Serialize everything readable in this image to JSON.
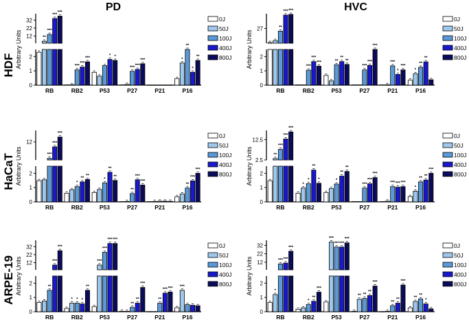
{
  "column_titles": [
    "PD",
    "HVC"
  ],
  "row_labels": [
    "HDF",
    "HaCaT",
    "ARPE-19"
  ],
  "series_colors": {
    "0J": "#ffffff",
    "50J": "#9fc8ec",
    "100J": "#5a9ad8",
    "400J": "#1818cc",
    "800J": "#0b0b5c"
  },
  "chart_data": [
    {
      "type": "bar",
      "row": "HDF",
      "column": "PD",
      "ylabel": "Arbitrary Units",
      "categories": [
        "RB",
        "RB2",
        "P53",
        "P27",
        "P21",
        "P16"
      ],
      "y_axis_break": true,
      "lower_range": [
        0,
        2.5
      ],
      "lower_ticks": [
        0,
        1,
        2
      ],
      "upper_range": [
        3,
        40
      ],
      "upper_ticks": [
        12,
        22,
        32
      ],
      "legend": "right",
      "series": [
        {
          "name": "0J",
          "values": [
            2.3,
            0.02,
            0.9,
            0.02,
            0.01,
            0.45
          ],
          "significance": [
            "",
            "",
            "",
            "",
            "",
            ""
          ]
        },
        {
          "name": "50J",
          "values": [
            5.5,
            0.03,
            0.63,
            0.05,
            0.01,
            1.55
          ],
          "significance": [
            "**",
            "",
            "",
            "",
            "",
            "*"
          ]
        },
        {
          "name": "100J",
          "values": [
            14,
            1.07,
            1.37,
            0.97,
            0.01,
            2.5
          ],
          "significance": [
            "***",
            "***",
            "",
            "***",
            "",
            "**"
          ]
        },
        {
          "name": "400J",
          "values": [
            34,
            1.27,
            1.8,
            1.1,
            0.01,
            0.9
          ],
          "significance": [
            "***",
            "***",
            "*",
            "***",
            "",
            "*"
          ]
        },
        {
          "name": "800J",
          "values": [
            37,
            1.63,
            1.73,
            1.5,
            0.01,
            1.73
          ],
          "significance": [
            "***",
            "***",
            "*",
            "***",
            "",
            "**"
          ]
        }
      ]
    },
    {
      "type": "bar",
      "row": "HDF",
      "column": "HVC",
      "ylabel": "Arbitrary Units",
      "categories": [
        "RB",
        "RB2",
        "P53",
        "P27",
        "P21",
        "P16"
      ],
      "y_axis_break": true,
      "lower_range": [
        0,
        2.5
      ],
      "lower_ticks": [
        0,
        1,
        2
      ],
      "upper_range": [
        16,
        38
      ],
      "upper_ticks": [
        27
      ],
      "legend": "right",
      "series": [
        {
          "name": "0J",
          "values": [
            16.5,
            0.02,
            0.68,
            0.02,
            0.02,
            0.35
          ],
          "significance": [
            "",
            "",
            "",
            "",
            "",
            ""
          ]
        },
        {
          "name": "50J",
          "values": [
            18,
            0.02,
            0.3,
            0.02,
            0.03,
            0.8
          ],
          "significance": [
            "",
            "",
            "",
            "",
            "",
            "*"
          ]
        },
        {
          "name": "100J",
          "values": [
            25,
            1.05,
            1.43,
            1.07,
            1.35,
            1.25
          ],
          "significance": [
            "**",
            "***",
            "**",
            "***",
            "***",
            "**"
          ]
        },
        {
          "name": "400J",
          "values": [
            37,
            1.65,
            1.65,
            1.38,
            0.75,
            1.63
          ],
          "significance": [
            "***",
            "***",
            "**",
            "***",
            "*",
            "**"
          ]
        },
        {
          "name": "800J",
          "values": [
            37.5,
            1.33,
            1.45,
            2.5,
            1.07,
            0.38
          ],
          "significance": [
            "***",
            "***",
            "**",
            "***",
            "***",
            ""
          ]
        }
      ]
    },
    {
      "type": "bar",
      "row": "HaCaT",
      "column": "PD",
      "ylabel": "Arbitrary Units",
      "categories": [
        "RB",
        "RB2",
        "P53",
        "P27",
        "P21",
        "P16"
      ],
      "y_axis_break": true,
      "lower_range": [
        0,
        2.5
      ],
      "lower_ticks": [
        0,
        1,
        2
      ],
      "upper_range": [
        6.5,
        15.5
      ],
      "upper_ticks": [
        12
      ],
      "legend": "right",
      "series": [
        {
          "name": "0J",
          "values": [
            1.48,
            0.6,
            0.65,
            0.02,
            0.02,
            0.35
          ],
          "significance": [
            "",
            "",
            "",
            "",
            "",
            ""
          ]
        },
        {
          "name": "50J",
          "values": [
            1.55,
            0.85,
            0.87,
            0.03,
            0.03,
            0.55
          ],
          "significance": [
            "",
            "",
            "",
            "",
            "",
            ""
          ]
        },
        {
          "name": "100J",
          "values": [
            7,
            1.07,
            1.33,
            0.58,
            0.05,
            0.97
          ],
          "significance": [
            "***",
            "*",
            "*",
            "**",
            "",
            "**"
          ]
        },
        {
          "name": "400J",
          "values": [
            10.5,
            1.4,
            2.07,
            1.55,
            0.05,
            1.47
          ],
          "significance": [
            "***",
            "**",
            "**",
            "***",
            "",
            "***"
          ]
        },
        {
          "name": "800J",
          "values": [
            13.5,
            1.57,
            1.5,
            1.18,
            0.04,
            2.0
          ],
          "significance": [
            "***",
            "**",
            "**",
            "***",
            "",
            "***"
          ]
        }
      ]
    },
    {
      "type": "bar",
      "row": "HaCaT",
      "column": "HVC",
      "ylabel": "Arbitrary Units",
      "categories": [
        "RB",
        "RB2",
        "P53",
        "P27",
        "P21",
        "P16"
      ],
      "y_axis_break": true,
      "lower_range": [
        0,
        2.5
      ],
      "lower_ticks": [
        0,
        1,
        2
      ],
      "upper_range": [
        2.5,
        17
      ],
      "upper_ticks": [
        2.5,
        12.5
      ],
      "legend": "right",
      "series": [
        {
          "name": "0J",
          "values": [
            1.48,
            0.6,
            0.65,
            0.02,
            0.02,
            0.37
          ],
          "significance": [
            "",
            "",
            "",
            "",
            "",
            ""
          ]
        },
        {
          "name": "50J",
          "values": [
            3.2,
            0.97,
            0.93,
            0.02,
            0.05,
            0.75
          ],
          "significance": [
            "**",
            "*",
            "",
            "",
            "",
            "*"
          ]
        },
        {
          "name": "100J",
          "values": [
            7.7,
            1.27,
            1.25,
            0.97,
            1.07,
            1.4
          ],
          "significance": [
            "***",
            "*",
            "*",
            "***",
            "***",
            "**"
          ]
        },
        {
          "name": "400J",
          "values": [
            12.8,
            2.23,
            1.8,
            1.27,
            1.03,
            1.53
          ],
          "significance": [
            "***",
            "**",
            "**",
            "***",
            "***",
            "**"
          ]
        },
        {
          "name": "800J",
          "values": [
            16.3,
            1.3,
            2.13,
            1.7,
            1.07,
            2.0
          ],
          "significance": [
            "***",
            "*",
            "**",
            "***",
            "***",
            "***"
          ]
        }
      ]
    },
    {
      "type": "bar",
      "row": "ARPE-19",
      "column": "PD",
      "ylabel": "Arbitrary Units",
      "categories": [
        "RB",
        "RB2",
        "P53",
        "P27",
        "P21",
        "P16"
      ],
      "y_axis_break": true,
      "lower_range": [
        0,
        2.5
      ],
      "lower_ticks": [
        0,
        1,
        2
      ],
      "upper_range": [
        3,
        40
      ],
      "upper_ticks": [
        12,
        22,
        32
      ],
      "legend": "right",
      "series": [
        {
          "name": "0J",
          "values": [
            0.65,
            0.23,
            0.35,
            0.03,
            0.01,
            0.28
          ],
          "significance": [
            "",
            "",
            "",
            "",
            "",
            ""
          ]
        },
        {
          "name": "50J",
          "values": [
            0.75,
            0.6,
            9,
            0.03,
            0.01,
            1.5
          ],
          "significance": [
            "",
            "*",
            "***",
            "",
            "",
            "***"
          ]
        },
        {
          "name": "100J",
          "values": [
            1.5,
            0.6,
            25,
            0.3,
            0.6,
            0.5
          ],
          "significance": [
            "**",
            "*",
            "***",
            "**",
            "**",
            ""
          ]
        },
        {
          "name": "400J",
          "values": [
            9,
            0.55,
            36,
            0.6,
            1.3,
            0.45
          ],
          "significance": [
            "***",
            "*",
            "***",
            "**",
            "***",
            ""
          ]
        },
        {
          "name": "800J",
          "values": [
            27,
            1.5,
            36,
            1.7,
            1.38,
            0.42
          ],
          "significance": [
            "***",
            "**",
            "***",
            "***",
            "***",
            ""
          ]
        }
      ]
    },
    {
      "type": "bar",
      "row": "ARPE-19",
      "column": "HVC",
      "ylabel": "Arbitrary Units",
      "categories": [
        "RB",
        "RB2",
        "P53",
        "P27",
        "P21",
        "P16"
      ],
      "y_axis_break": true,
      "lower_range": [
        0,
        2.5
      ],
      "lower_ticks": [
        0,
        1,
        2
      ],
      "upper_range": [
        3,
        38
      ],
      "upper_ticks": [
        12,
        22,
        32
      ],
      "legend": "right",
      "series": [
        {
          "name": "0J",
          "values": [
            0.65,
            0.17,
            0.68,
            0.03,
            0.01,
            0.27
          ],
          "significance": [
            "",
            "",
            "",
            "",
            "",
            ""
          ]
        },
        {
          "name": "50J",
          "values": [
            1.2,
            0.27,
            36,
            0.87,
            0.03,
            0.72
          ],
          "significance": [
            "*",
            "",
            "***",
            "**",
            "",
            "**"
          ]
        },
        {
          "name": "100J",
          "values": [
            10,
            0.5,
            30,
            0.93,
            0.42,
            0.9
          ],
          "significance": [
            "***",
            "*",
            "***",
            "**",
            "**",
            "**"
          ]
        },
        {
          "name": "400J",
          "values": [
            11,
            0.73,
            30,
            1.13,
            0.6,
            0.55
          ],
          "significance": [
            "***",
            "**",
            "***",
            "**",
            "**",
            "*"
          ]
        },
        {
          "name": "800J",
          "values": [
            25,
            1.37,
            35,
            1.8,
            1.87,
            0.2
          ],
          "significance": [
            "***",
            "***",
            "***",
            "***",
            "***",
            ""
          ]
        }
      ]
    }
  ]
}
